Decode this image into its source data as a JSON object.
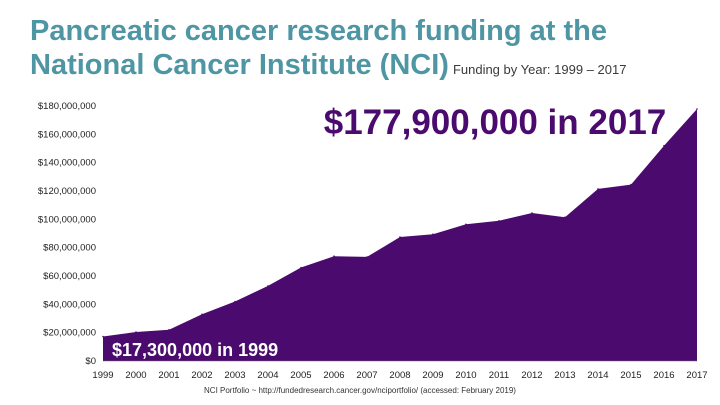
{
  "header": {
    "title_line1": "Pancreatic cancer research funding at the",
    "title_line2": "National Cancer Institute (NCI)",
    "subtitle": "Funding by Year: 1999 – 2017"
  },
  "annotations": {
    "top": "$177,900,000 in 2017",
    "bottom": "$17,300,000 in 1999"
  },
  "footer": {
    "source": "NCI Portfolio ~ http://fundedresearch.cancer.gov/nciportfolio/ (accessed: February 2019)"
  },
  "colors": {
    "area": "#4b0a6e",
    "title": "#4e96a3",
    "annotation_top": "#4b0a6e",
    "annotation_bottom": "#ffffff"
  },
  "chart_data": {
    "type": "area",
    "x": [
      "1999",
      "2000",
      "2001",
      "2002",
      "2003",
      "2004",
      "2005",
      "2006",
      "2007",
      "2008",
      "2009",
      "2010",
      "2011",
      "2012",
      "2013",
      "2014",
      "2015",
      "2016",
      "2017"
    ],
    "values": [
      17300000,
      20500000,
      22000000,
      33000000,
      42000000,
      53000000,
      66000000,
      74000000,
      73500000,
      87500000,
      89500000,
      96500000,
      99000000,
      104500000,
      101500000,
      121500000,
      124500000,
      152000000,
      177900000
    ],
    "ylim": [
      0,
      180000000
    ],
    "yticks": [
      0,
      20000000,
      40000000,
      60000000,
      80000000,
      100000000,
      120000000,
      140000000,
      160000000,
      180000000
    ],
    "ytick_labels": [
      "$0",
      "$20,000,000",
      "$40,000,000",
      "$60,000,000",
      "$80,000,000",
      "$100,000,000",
      "$120,000,000",
      "$140,000,000",
      "$160,000,000",
      "$180,000,000"
    ],
    "grid": false
  }
}
